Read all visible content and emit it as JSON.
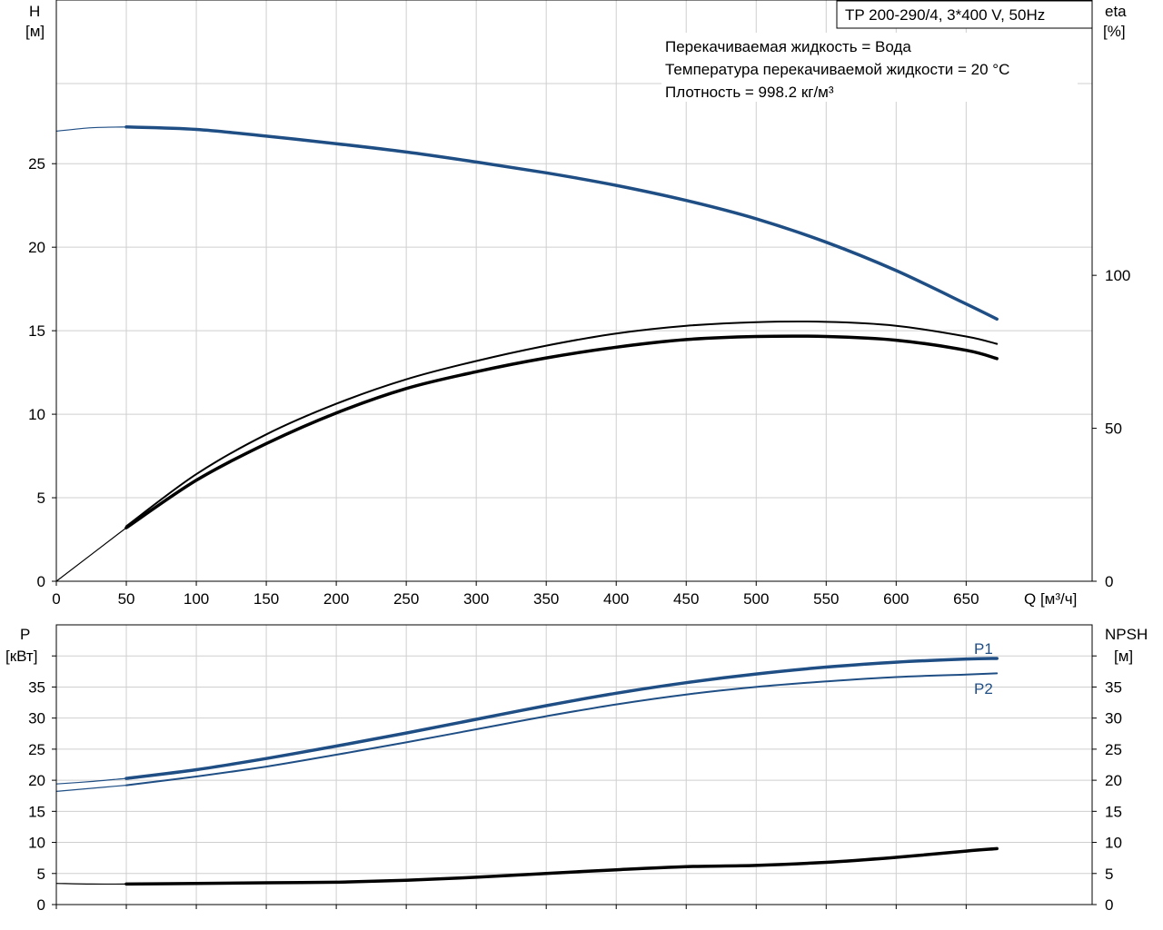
{
  "model_box": "TP 200-290/4, 3*400 V, 50Hz",
  "info": {
    "line1": "Перекачиваемая жидкость = Вода",
    "line2": "Температура перекачиваемой жидкости = 20 °C",
    "line3": "Плотность = 998.2 кг/м³"
  },
  "colors": {
    "blue": "#1f4e85",
    "black": "#000000",
    "grid": "#cfcfcf"
  },
  "chart_data": [
    {
      "type": "line",
      "x_label": "Q [м³/ч]",
      "left_axis": {
        "label_top": "H",
        "label_unit": "[м]",
        "range": [
          0,
          34.8
        ],
        "ticks": [
          0,
          5,
          10,
          15,
          20,
          25
        ]
      },
      "right_axis": {
        "label_top": "eta",
        "label_unit": "[%]",
        "range": [
          0,
          190
        ],
        "ticks": [
          0,
          50,
          100
        ]
      },
      "x_range": [
        0,
        740
      ],
      "x_ticks": [
        0,
        50,
        100,
        150,
        200,
        250,
        300,
        350,
        400,
        450,
        500,
        550,
        600,
        650
      ],
      "grid": true,
      "series": [
        {
          "axis": "left",
          "color": "#1f4e85",
          "width": 3.5,
          "points": [
            [
              50,
              27.2
            ],
            [
              100,
              27.05
            ],
            [
              150,
              26.65
            ],
            [
              200,
              26.2
            ],
            [
              250,
              25.7
            ],
            [
              300,
              25.1
            ],
            [
              350,
              24.45
            ],
            [
              400,
              23.7
            ],
            [
              450,
              22.8
            ],
            [
              500,
              21.7
            ],
            [
              550,
              20.3
            ],
            [
              600,
              18.6
            ],
            [
              650,
              16.6
            ],
            [
              672,
              15.7
            ]
          ]
        },
        {
          "axis": "left",
          "color": "#1f4e85",
          "width": 1.2,
          "points": [
            [
              0,
              26.95
            ],
            [
              25,
              27.15
            ],
            [
              50,
              27.2
            ]
          ]
        },
        {
          "axis": "right",
          "color": "#000000",
          "width": 2,
          "points": [
            [
              50,
              18
            ],
            [
              100,
              35
            ],
            [
              150,
              48
            ],
            [
              200,
              58
            ],
            [
              250,
              66
            ],
            [
              300,
              72
            ],
            [
              350,
              77
            ],
            [
              400,
              81
            ],
            [
              450,
              83.5
            ],
            [
              500,
              84.7
            ],
            [
              550,
              84.8
            ],
            [
              600,
              83.5
            ],
            [
              650,
              80
            ],
            [
              672,
              77.6
            ]
          ]
        },
        {
          "axis": "right",
          "color": "#000000",
          "width": 3.5,
          "points": [
            [
              50,
              17.5
            ],
            [
              100,
              33
            ],
            [
              150,
              45
            ],
            [
              200,
              55
            ],
            [
              250,
              63
            ],
            [
              300,
              68.5
            ],
            [
              350,
              73
            ],
            [
              400,
              76.5
            ],
            [
              450,
              79
            ],
            [
              500,
              80
            ],
            [
              550,
              80
            ],
            [
              600,
              78.8
            ],
            [
              650,
              75.5
            ],
            [
              672,
              72.8
            ]
          ]
        },
        {
          "axis": "right",
          "color": "#000000",
          "width": 1.2,
          "points": [
            [
              0,
              0
            ],
            [
              50,
              17.5
            ]
          ]
        }
      ]
    },
    {
      "type": "line",
      "left_axis": {
        "label_top": "P",
        "label_unit": "[кВт]",
        "range": [
          0,
          45
        ],
        "ticks": [
          0,
          5,
          10,
          15,
          20,
          25,
          30,
          35
        ]
      },
      "right_axis": {
        "label_top": "NPSH",
        "label_unit": "[м]",
        "range": [
          0,
          45
        ],
        "ticks": [
          0,
          5,
          10,
          15,
          20,
          25,
          30,
          35
        ]
      },
      "x_range": [
        0,
        740
      ],
      "x_ticks": [
        0,
        50,
        100,
        150,
        200,
        250,
        300,
        350,
        400,
        450,
        500,
        550,
        600,
        650
      ],
      "grid": true,
      "series": [
        {
          "name": "P1",
          "axis": "left",
          "color": "#1f4e85",
          "width": 3.5,
          "points": [
            [
              50,
              20.3
            ],
            [
              100,
              21.7
            ],
            [
              150,
              23.5
            ],
            [
              200,
              25.5
            ],
            [
              250,
              27.6
            ],
            [
              300,
              29.8
            ],
            [
              350,
              32
            ],
            [
              400,
              34
            ],
            [
              450,
              35.7
            ],
            [
              500,
              37.1
            ],
            [
              550,
              38.2
            ],
            [
              600,
              39
            ],
            [
              650,
              39.5
            ],
            [
              672,
              39.6
            ]
          ]
        },
        {
          "axis": "left",
          "color": "#1f4e85",
          "width": 1.2,
          "points": [
            [
              0,
              19.4
            ],
            [
              25,
              19.8
            ],
            [
              50,
              20.3
            ]
          ]
        },
        {
          "name": "P2",
          "axis": "left",
          "color": "#1f4e85",
          "width": 2,
          "points": [
            [
              50,
              19.2
            ],
            [
              100,
              20.6
            ],
            [
              150,
              22.2
            ],
            [
              200,
              24.1
            ],
            [
              250,
              26.1
            ],
            [
              300,
              28.2
            ],
            [
              350,
              30.3
            ],
            [
              400,
              32.2
            ],
            [
              450,
              33.8
            ],
            [
              500,
              35
            ],
            [
              550,
              35.9
            ],
            [
              600,
              36.6
            ],
            [
              650,
              37
            ],
            [
              672,
              37.2
            ]
          ]
        },
        {
          "axis": "left",
          "color": "#1f4e85",
          "width": 1.2,
          "points": [
            [
              0,
              18.2
            ],
            [
              25,
              18.7
            ],
            [
              50,
              19.2
            ]
          ]
        },
        {
          "axis": "right",
          "color": "#000000",
          "width": 3.5,
          "points": [
            [
              50,
              3.3
            ],
            [
              100,
              3.4
            ],
            [
              150,
              3.5
            ],
            [
              200,
              3.6
            ],
            [
              250,
              3.9
            ],
            [
              300,
              4.4
            ],
            [
              350,
              5
            ],
            [
              400,
              5.6
            ],
            [
              450,
              6.1
            ],
            [
              500,
              6.3
            ],
            [
              550,
              6.8
            ],
            [
              600,
              7.6
            ],
            [
              650,
              8.6
            ],
            [
              672,
              9
            ]
          ]
        },
        {
          "axis": "right",
          "color": "#000000",
          "width": 1.2,
          "points": [
            [
              0,
              3.4
            ],
            [
              25,
              3.3
            ],
            [
              50,
              3.3
            ]
          ]
        }
      ]
    }
  ]
}
